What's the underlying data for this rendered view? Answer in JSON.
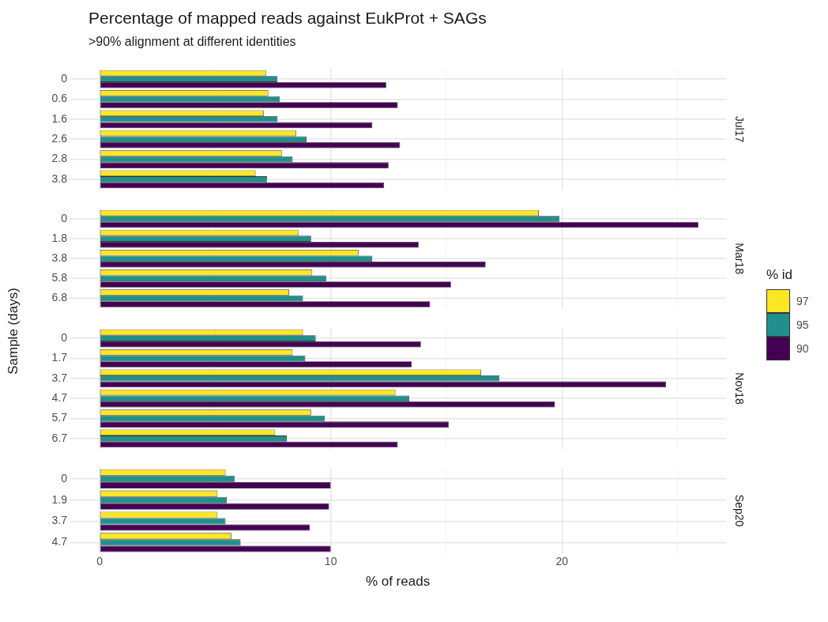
{
  "chart_data": [
    {
      "type": "bar",
      "orientation": "horizontal",
      "title": "Percentage of mapped reads against EukProt + SAGs",
      "subtitle": ">90% alignment at different identities",
      "legend_title": "% id",
      "legend": "right",
      "grid": true,
      "tick_labels": "y",
      "annotations": [
        "Jul17"
      ],
      "categories": [
        "0",
        "0.6",
        "1.6",
        "2.6",
        "2.8",
        "3.8"
      ],
      "xlim": [
        -1.3,
        27.1
      ],
      "xticks": [
        0,
        {
          "value": 5,
          "label": null
        },
        10,
        {
          "value": 15,
          "label": null
        },
        20,
        {
          "value": 25,
          "label": null
        }
      ],
      "series": [
        {
          "name": "97",
          "color": "#fde725",
          "values": [
            7.2,
            7.3,
            7.1,
            8.5,
            7.9,
            6.75
          ]
        },
        {
          "name": "95",
          "color": "#21908c",
          "values": [
            7.7,
            7.8,
            7.7,
            8.95,
            8.35,
            7.25
          ]
        },
        {
          "name": "90",
          "color": "#440154",
          "values": [
            12.4,
            12.9,
            11.8,
            13.0,
            12.5,
            12.3
          ]
        }
      ]
    },
    {
      "type": "bar",
      "orientation": "horizontal",
      "grid": true,
      "tick_labels": "y",
      "annotations": [
        "Mar18"
      ],
      "categories": [
        "0",
        "1.8",
        "3.8",
        "5.8",
        "6.8"
      ],
      "xlim": [
        -1.3,
        27.1
      ],
      "xticks": [
        0,
        {
          "value": 5,
          "label": null
        },
        10,
        {
          "value": 15,
          "label": null
        },
        20,
        {
          "value": 25,
          "label": null
        }
      ],
      "series": [
        {
          "name": "97",
          "color": "#fde725",
          "values": [
            19.0,
            8.6,
            11.2,
            9.2,
            8.2
          ]
        },
        {
          "name": "95",
          "color": "#21908c",
          "values": [
            19.9,
            9.15,
            11.8,
            9.8,
            8.8
          ]
        },
        {
          "name": "90",
          "color": "#440154",
          "values": [
            25.9,
            13.8,
            16.7,
            15.2,
            14.3
          ]
        }
      ]
    },
    {
      "type": "bar",
      "orientation": "horizontal",
      "ylabel": "Sample (days)",
      "grid": true,
      "tick_labels": "y",
      "annotations": [
        "Nov18"
      ],
      "categories": [
        "0",
        "1.7",
        "3.7",
        "4.7",
        "5.7",
        "6.7"
      ],
      "xlim": [
        -1.3,
        27.1
      ],
      "xticks": [
        0,
        {
          "value": 5,
          "label": null
        },
        10,
        {
          "value": 15,
          "label": null
        },
        20,
        {
          "value": 25,
          "label": null
        }
      ],
      "series": [
        {
          "name": "97",
          "color": "#fde725",
          "values": [
            8.8,
            8.35,
            16.5,
            12.8,
            9.15,
            7.6
          ]
        },
        {
          "name": "95",
          "color": "#21908c",
          "values": [
            9.35,
            8.9,
            17.3,
            13.4,
            9.75,
            8.1
          ]
        },
        {
          "name": "90",
          "color": "#440154",
          "values": [
            13.9,
            13.5,
            24.5,
            19.7,
            15.1,
            12.9
          ]
        }
      ]
    },
    {
      "type": "bar",
      "orientation": "horizontal",
      "grid": true,
      "xlabel": "% of reads",
      "annotations": [
        "Sep20"
      ],
      "categories": [
        "0",
        "1.9",
        "3.7",
        "4.7"
      ],
      "xlim": [
        -1.3,
        27.1
      ],
      "xticks": [
        0,
        {
          "value": 5,
          "label": null
        },
        10,
        {
          "value": 15,
          "label": null
        },
        20,
        {
          "value": 25,
          "label": null
        }
      ],
      "series": [
        {
          "name": "97",
          "color": "#fde725",
          "values": [
            5.45,
            5.1,
            5.1,
            5.7
          ]
        },
        {
          "name": "95",
          "color": "#21908c",
          "values": [
            5.85,
            5.5,
            5.45,
            6.1
          ]
        },
        {
          "name": "90",
          "color": "#440154",
          "values": [
            10.0,
            9.93,
            9.1,
            10.0
          ]
        }
      ]
    }
  ]
}
